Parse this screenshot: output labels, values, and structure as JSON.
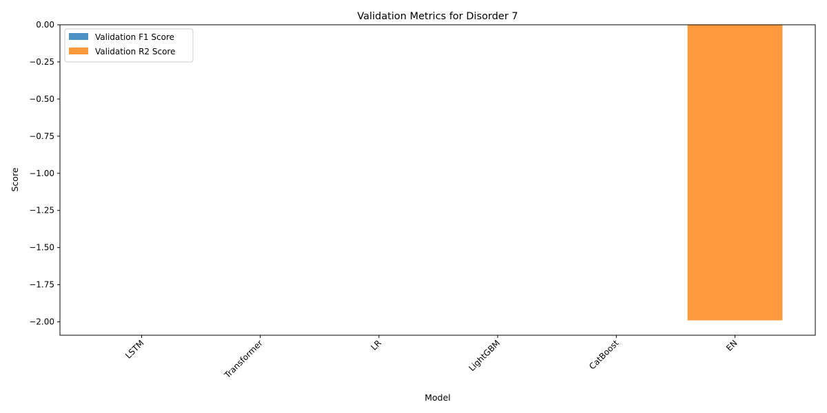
{
  "chart_data": {
    "type": "bar",
    "title": "Validation Metrics for Disorder 7",
    "xlabel": "Model",
    "ylabel": "Score",
    "categories": [
      "LSTM",
      "Transformer",
      "LR",
      "LightGBM",
      "CatBoost",
      "EN"
    ],
    "series": [
      {
        "name": "Validation F1 Score",
        "color": "#1f77b4",
        "values": [
          0,
          0,
          0,
          0,
          0,
          0
        ]
      },
      {
        "name": "Validation R2 Score",
        "color": "#ff7f0e",
        "values": [
          0,
          0,
          0,
          0,
          0,
          -1.99
        ]
      }
    ],
    "ylim": [
      -2.09,
      0.0
    ],
    "yticks": [
      0.0,
      -0.25,
      -0.5,
      -0.75,
      -1.0,
      -1.25,
      -1.5,
      -1.75,
      -2.0
    ],
    "ytick_labels": [
      "0.00",
      "−0.25",
      "−0.50",
      "−0.75",
      "−1.00",
      "−1.25",
      "−1.50",
      "−1.75",
      "−2.00"
    ],
    "xtick_rotation": 45,
    "bar_opacity": 0.8,
    "legend": "upper-left",
    "grid": false
  }
}
